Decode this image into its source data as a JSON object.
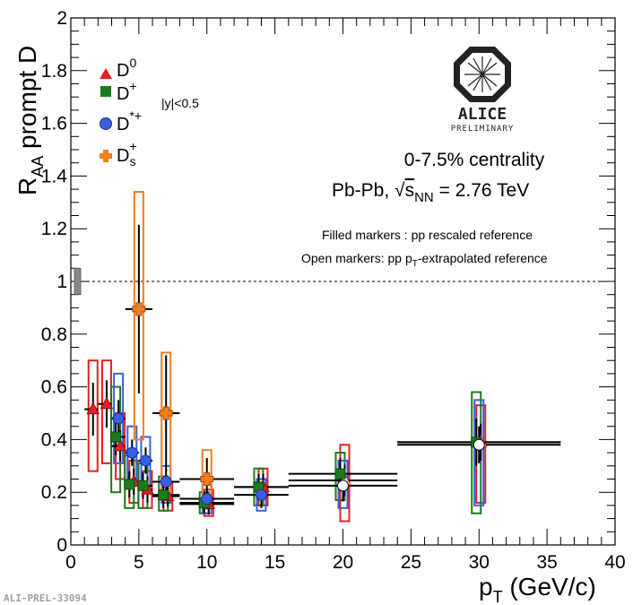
{
  "chart_data": {
    "type": "scatter",
    "xlabel": "p_T (GeV/c)",
    "ylabel": "R_AA prompt D",
    "xlim": [
      0,
      40
    ],
    "ylim": [
      0,
      2
    ],
    "xticks": [
      "0",
      "5",
      "10",
      "15",
      "20",
      "25",
      "30",
      "35",
      "40"
    ],
    "yticks": [
      "0",
      "0.2",
      "0.4",
      "0.6",
      "0.8",
      "1",
      "1.2",
      "1.4",
      "1.6",
      "1.8",
      "2"
    ],
    "reference_line": 1,
    "reference_label": "1",
    "legend_placement": "top-left",
    "series": [
      {
        "name": "D0",
        "color": "#e32020",
        "marker": "triangle",
        "points": [
          {
            "x": 1.5,
            "xlo": 1,
            "xhi": 2,
            "y": 0.515,
            "stat": 0.1,
            "syslo": 0.28,
            "syshi": 0.7
          },
          {
            "x": 2.5,
            "xlo": 2,
            "xhi": 3,
            "y": 0.535,
            "stat": 0.09,
            "syslo": 0.31,
            "syshi": 0.7
          },
          {
            "x": 3.5,
            "xlo": 3,
            "xhi": 4,
            "y": 0.375,
            "stat": 0.06,
            "syslo": 0.25,
            "syshi": 0.5
          },
          {
            "x": 4.5,
            "xlo": 4,
            "xhi": 5,
            "y": 0.24,
            "stat": 0.05,
            "syslo": 0.16,
            "syshi": 0.32
          },
          {
            "x": 5.5,
            "xlo": 5,
            "xhi": 6,
            "y": 0.21,
            "stat": 0.05,
            "syslo": 0.14,
            "syshi": 0.28
          },
          {
            "x": 7,
            "xlo": 6,
            "xhi": 8,
            "y": 0.185,
            "stat": 0.04,
            "syslo": 0.13,
            "syshi": 0.24
          },
          {
            "x": 10,
            "xlo": 8,
            "xhi": 12,
            "y": 0.155,
            "stat": 0.04,
            "syslo": 0.11,
            "syshi": 0.21
          },
          {
            "x": 14,
            "xlo": 12,
            "xhi": 16,
            "y": 0.22,
            "stat": 0.05,
            "syslo": 0.15,
            "syshi": 0.29
          },
          {
            "x": 20,
            "xlo": 16,
            "xhi": 24,
            "y": 0.245,
            "stat": 0.06,
            "syslo": 0.09,
            "syshi": 0.38
          },
          {
            "x": 30,
            "xlo": 24,
            "xhi": 36,
            "y": 0.39,
            "stat": 0.07,
            "syslo": 0.16,
            "syshi": 0.53
          }
        ]
      },
      {
        "name": "D+",
        "color": "#1d7a1d",
        "marker": "square",
        "points": [
          {
            "x": 3.5,
            "xlo": 3,
            "xhi": 4,
            "y": 0.41,
            "stat": 0.07,
            "syslo": 0.2,
            "syshi": 0.6
          },
          {
            "x": 4.5,
            "xlo": 4,
            "xhi": 5,
            "y": 0.23,
            "stat": 0.05,
            "syslo": 0.14,
            "syshi": 0.34
          },
          {
            "x": 5.5,
            "xlo": 5,
            "xhi": 6,
            "y": 0.225,
            "stat": 0.05,
            "syslo": 0.14,
            "syshi": 0.31
          },
          {
            "x": 7,
            "xlo": 6,
            "xhi": 8,
            "y": 0.19,
            "stat": 0.05,
            "syslo": 0.13,
            "syshi": 0.26
          },
          {
            "x": 10,
            "xlo": 8,
            "xhi": 12,
            "y": 0.16,
            "stat": 0.04,
            "syslo": 0.12,
            "syshi": 0.2
          },
          {
            "x": 14,
            "xlo": 12,
            "xhi": 16,
            "y": 0.22,
            "stat": 0.05,
            "syslo": 0.15,
            "syshi": 0.29
          },
          {
            "x": 20,
            "xlo": 16,
            "xhi": 24,
            "y": 0.27,
            "stat": 0.06,
            "syslo": 0.17,
            "syshi": 0.35
          },
          {
            "x": 30,
            "xlo": 24,
            "xhi": 36,
            "y": 0.39,
            "stat": 0.09,
            "syslo": 0.12,
            "syshi": 0.58
          }
        ]
      },
      {
        "name": "D*+",
        "color": "#3a5fe0",
        "marker": "circle",
        "points": [
          {
            "x": 3.5,
            "xlo": 3,
            "xhi": 4,
            "y": 0.48,
            "stat": 0.07,
            "syslo": 0.31,
            "syshi": 0.65
          },
          {
            "x": 4.5,
            "xlo": 4,
            "xhi": 5,
            "y": 0.35,
            "stat": 0.05,
            "syslo": 0.23,
            "syshi": 0.45
          },
          {
            "x": 5.5,
            "xlo": 5,
            "xhi": 6,
            "y": 0.32,
            "stat": 0.05,
            "syslo": 0.22,
            "syshi": 0.41
          },
          {
            "x": 7,
            "xlo": 6,
            "xhi": 8,
            "y": 0.24,
            "stat": 0.05,
            "syslo": 0.16,
            "syshi": 0.3
          },
          {
            "x": 10,
            "xlo": 8,
            "xhi": 12,
            "y": 0.175,
            "stat": 0.04,
            "syslo": 0.12,
            "syshi": 0.23
          },
          {
            "x": 14,
            "xlo": 12,
            "xhi": 16,
            "y": 0.19,
            "stat": 0.05,
            "syslo": 0.13,
            "syshi": 0.25
          },
          {
            "x": 20,
            "xlo": 16,
            "xhi": 24,
            "y": 0.225,
            "stat": 0.06,
            "syslo": 0.14,
            "syshi": 0.32
          },
          {
            "x": 30,
            "xlo": 24,
            "xhi": 36,
            "y": 0.38,
            "stat": 0.07,
            "syslo": 0.15,
            "syshi": 0.55
          }
        ]
      },
      {
        "name": "Ds+",
        "color": "#f07f1f",
        "marker": "cross",
        "points": [
          {
            "x": 5,
            "xlo": 4,
            "xhi": 6,
            "y": 0.895,
            "stat": 0.32,
            "syslo": 0.4,
            "syshi": 1.34
          },
          {
            "x": 7,
            "xlo": 6,
            "xhi": 8,
            "y": 0.5,
            "stat": 0.22,
            "syslo": 0.18,
            "syshi": 0.73
          },
          {
            "x": 10,
            "xlo": 8,
            "xhi": 12,
            "y": 0.25,
            "stat": 0.08,
            "syslo": 0.15,
            "syshi": 0.36
          }
        ]
      }
    ]
  },
  "legend": {
    "items": [
      {
        "label": "D",
        "sup": "0",
        "sub": ""
      },
      {
        "label": "D",
        "sup": "+",
        "sub": ""
      },
      {
        "label": "D",
        "sup": "*+",
        "sub": ""
      },
      {
        "label": "D",
        "sup": "+",
        "sub": "s"
      }
    ],
    "rapidity": "|y|<0.5"
  },
  "annotations": {
    "centrality": "0-7.5% centrality",
    "system_prefix": "Pb-Pb, ",
    "sqrt_symbol": "√",
    "sqrt_s": "s",
    "sqrt_sub": "NN",
    "system_suffix": " = 2.76 TeV",
    "filled_note": "Filled markers : pp rescaled reference",
    "open_note_prefix": "Open markers: pp p",
    "open_note_sub": "T",
    "open_note_suffix": "-extrapolated reference",
    "logo_word": "ALICE",
    "logo_sub": "PRELIMINARY",
    "tag": "ALI-PREL-33094"
  },
  "axis_titles": {
    "y_main": "R",
    "y_sub": "AA",
    "y_rest": " prompt D",
    "x_main": "p",
    "x_sub": "T",
    "x_rest": " (GeV/c)"
  }
}
